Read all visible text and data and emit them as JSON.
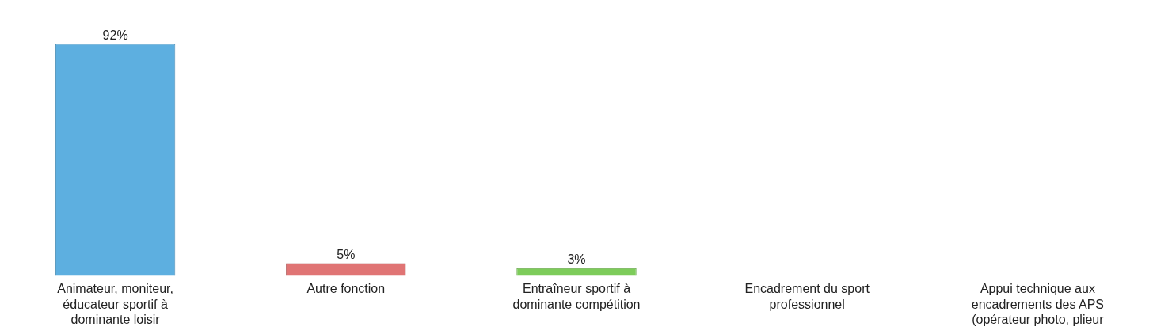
{
  "chart_data": {
    "type": "bar",
    "categories": [
      "Animateur, moniteur, éducateur sportif à dominante loisir",
      "Autre fonction",
      "Entraîneur sportif à dominante compétition",
      "Encadrement du sport professionnel",
      "Appui technique aux encadrements des APS (opérateur photo, plieur"
    ],
    "values": [
      92,
      5,
      3,
      null,
      null
    ],
    "colors": [
      "#5dafe0",
      "#e07474",
      "#7dcc5a",
      null,
      null
    ],
    "value_labels": [
      "92%",
      "5%",
      "3%",
      null,
      null
    ],
    "grid": false,
    "legend": false
  }
}
